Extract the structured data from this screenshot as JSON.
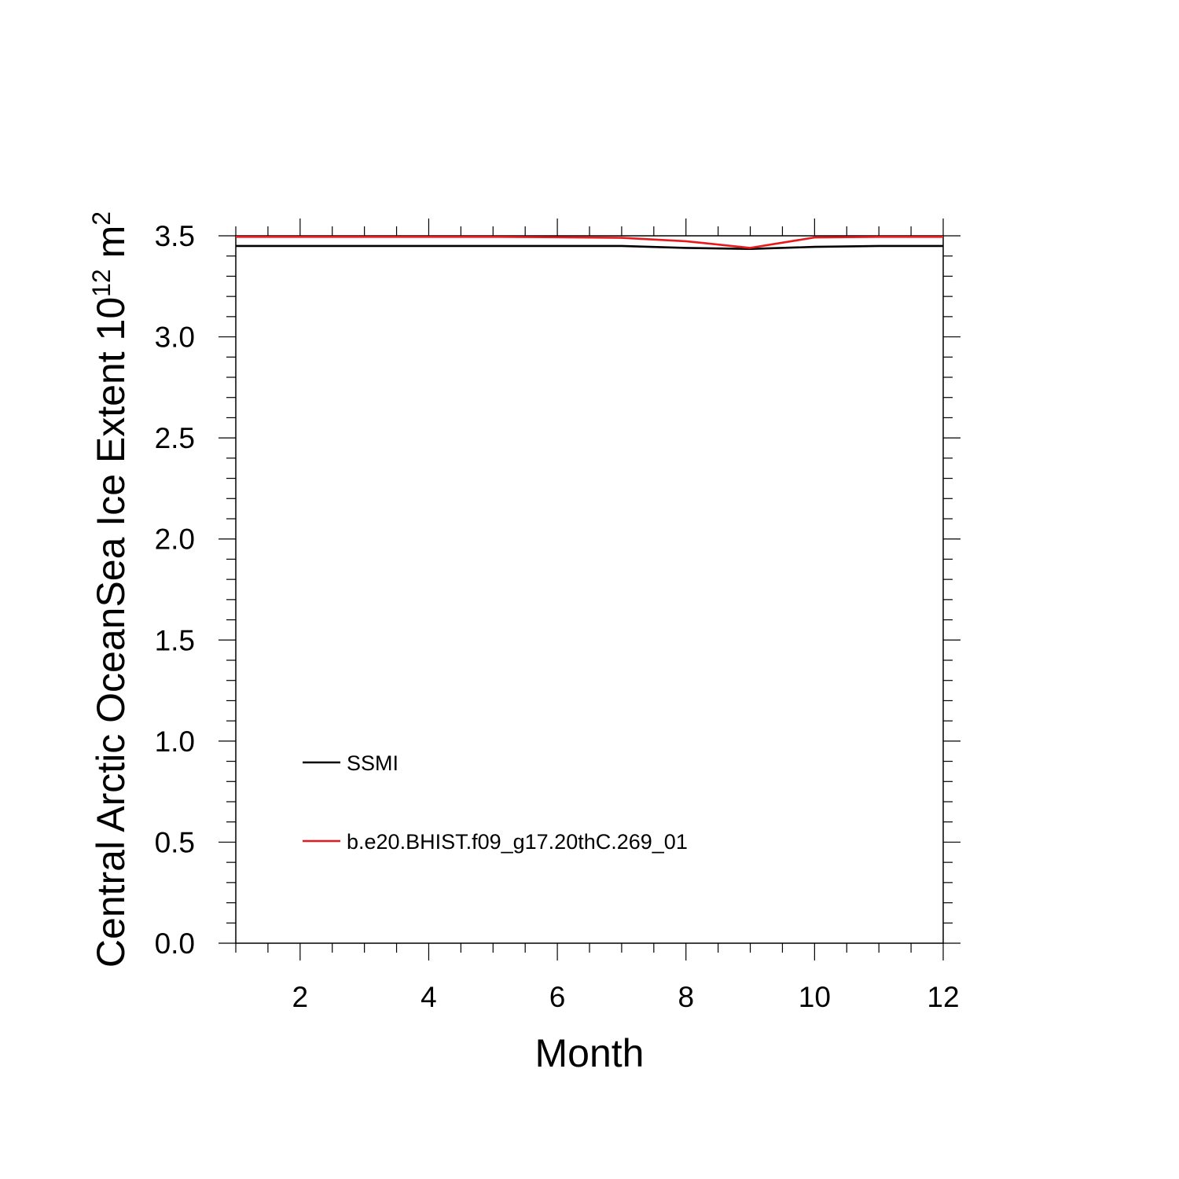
{
  "chart_data": {
    "type": "line",
    "xlabel": "Month",
    "ylabel": "Central Arctic OceanSea Ice Extent 10",
    "ylabel_sup": "12",
    "ylabel_unit": " m",
    "ylabel_unit_sup": "2",
    "xlim": [
      1,
      12
    ],
    "ylim": [
      0.0,
      3.5
    ],
    "x_major_ticks": [
      2,
      4,
      6,
      8,
      10,
      12
    ],
    "x_tick_labels": [
      "2",
      "4",
      "6",
      "8",
      "10",
      "12"
    ],
    "y_major_ticks": [
      0.0,
      0.5,
      1.0,
      1.5,
      2.0,
      2.5,
      3.0,
      3.5
    ],
    "y_tick_labels": [
      "0.0",
      "0.5",
      "1.0",
      "1.5",
      "2.0",
      "2.5",
      "3.0",
      "3.5"
    ],
    "grid": false,
    "legend_position": "bottom-left",
    "x": [
      1,
      2,
      3,
      4,
      5,
      6,
      7,
      8,
      9,
      10,
      11,
      12
    ],
    "series": [
      {
        "name": "SSMI",
        "color": "#000000",
        "values": [
          3.45,
          3.45,
          3.45,
          3.45,
          3.45,
          3.45,
          3.45,
          3.44,
          3.435,
          3.445,
          3.45,
          3.45
        ]
      },
      {
        "name": "b.e20.BHIST.f09_g17.20thC.269_01",
        "color": "#e8191b",
        "values": [
          3.495,
          3.495,
          3.495,
          3.495,
          3.495,
          3.493,
          3.49,
          3.473,
          3.44,
          3.492,
          3.495,
          3.495
        ]
      }
    ]
  }
}
